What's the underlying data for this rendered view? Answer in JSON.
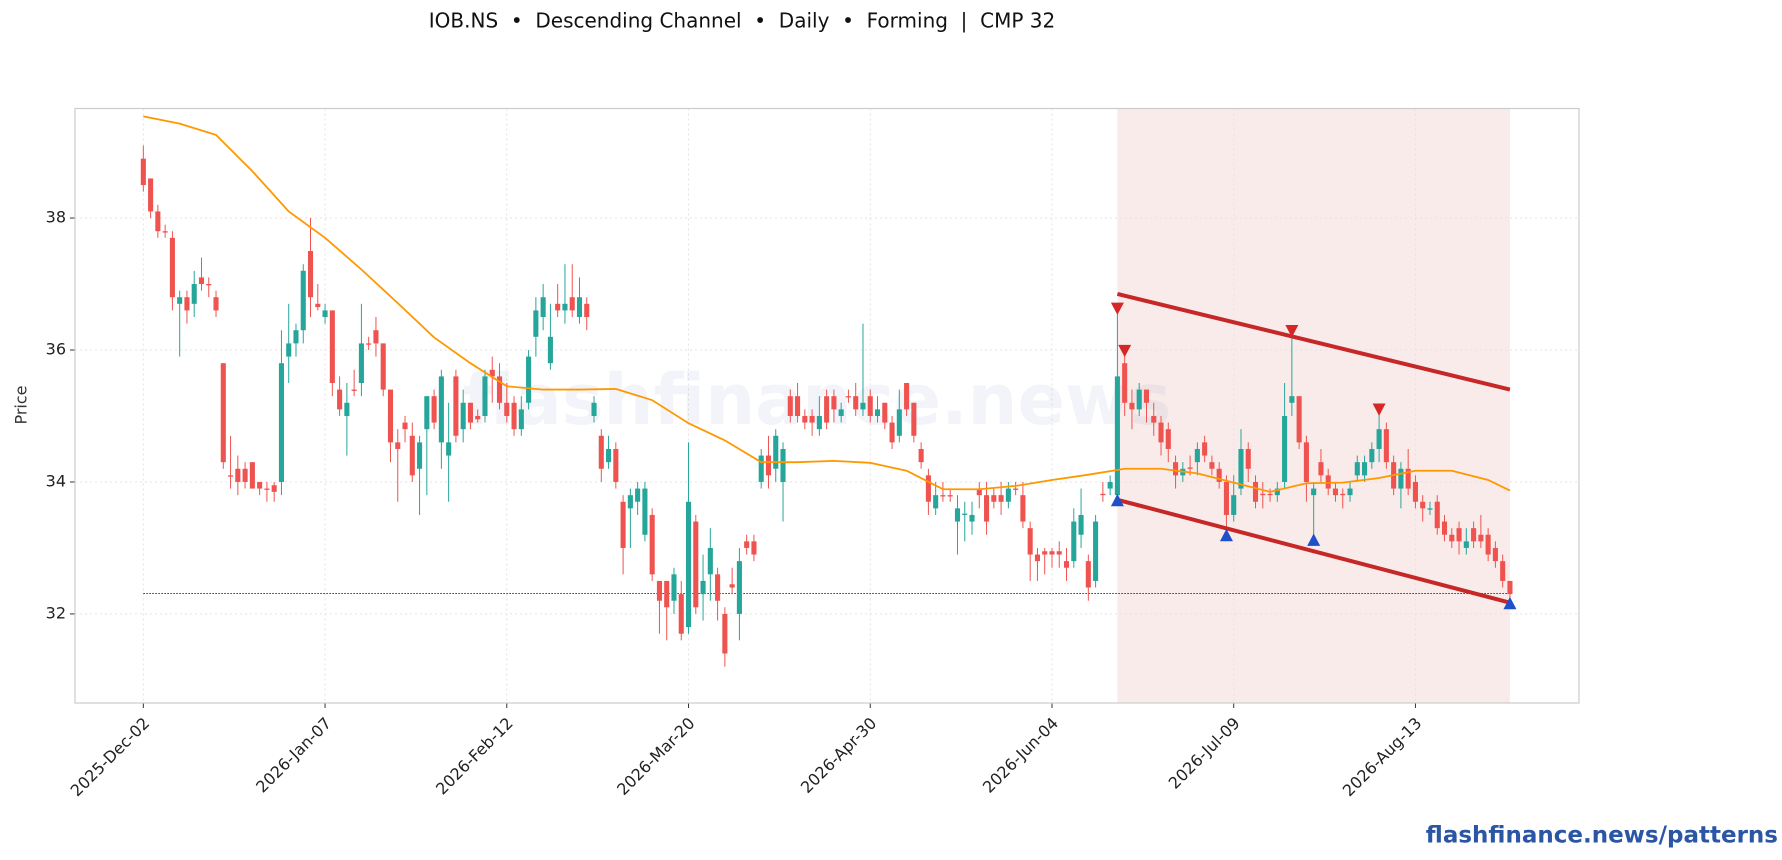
{
  "chart_data": {
    "type": "candlestick",
    "title": "IOB.NS  •  Descending Channel  •  Daily  •  Forming  |  CMP 32",
    "y_label": "Price",
    "watermark": "flashfinance.news",
    "footer": "flashfinance.news/patterns",
    "grid": true,
    "ylim": [
      30.65,
      39.66
    ],
    "yticks": [
      32,
      34,
      36,
      38
    ],
    "xlim": [
      -9.4,
      197.5
    ],
    "xticks": [
      {
        "value": 0,
        "label": "2025-Dec-02"
      },
      {
        "value": 25,
        "label": "2026-Jan-07"
      },
      {
        "value": 50,
        "label": "2026-Feb-12"
      },
      {
        "value": 75,
        "label": "2026-Mar-20"
      },
      {
        "value": 100,
        "label": "2026-Apr-30"
      },
      {
        "value": 125,
        "label": "2026-Jun-04"
      },
      {
        "value": 150,
        "label": "2026-Jul-09"
      },
      {
        "value": 175,
        "label": "2026-Aug-13"
      }
    ],
    "up_color": "#26a69a",
    "down_color": "#ef5350",
    "open": [
      38.9,
      38.6,
      38.1,
      37.8,
      37.7,
      36.7,
      36.8,
      36.7,
      37.1,
      37.0,
      36.8,
      35.8,
      34.1,
      34.2,
      34.2,
      34.3,
      34.0,
      33.9,
      33.95,
      34.0,
      35.9,
      36.1,
      36.3,
      37.5,
      36.7,
      36.5,
      36.6,
      35.4,
      35.0,
      35.4,
      35.5,
      36.1,
      36.3,
      36.1,
      35.4,
      34.6,
      34.9,
      34.7,
      34.2,
      34.8,
      35.3,
      34.6,
      34.4,
      35.6,
      34.8,
      35.2,
      35.0,
      35.0,
      35.7,
      35.6,
      35.2,
      35.2,
      34.8,
      35.2,
      36.2,
      36.5,
      35.8,
      36.7,
      36.6,
      36.8,
      36.5,
      36.7,
      35.0,
      34.7,
      34.3,
      34.5,
      33.7,
      33.6,
      33.7,
      33.2,
      33.5,
      32.5,
      32.5,
      32.2,
      32.3,
      31.8,
      33.4,
      32.3,
      32.6,
      32.6,
      32.0,
      32.45,
      32.0,
      33.1,
      33.1,
      34.0,
      34.4,
      34.2,
      34.0,
      35.3,
      35.3,
      35.0,
      35.0,
      34.8,
      35.3,
      35.3,
      35.0,
      35.3,
      35.3,
      35.1,
      35.3,
      35.0,
      35.2,
      34.9,
      34.7,
      35.5,
      35.2,
      34.5,
      34.1,
      33.6,
      33.8,
      33.8,
      33.4,
      33.5,
      33.4,
      33.9,
      33.8,
      33.8,
      33.8,
      33.7,
      33.9,
      33.8,
      33.3,
      32.9,
      32.95,
      32.95,
      32.95,
      32.8,
      32.8,
      33.2,
      32.8,
      32.5,
      33.82,
      33.9,
      33.8,
      35.8,
      35.2,
      35.1,
      35.4,
      35.0,
      34.9,
      34.8,
      34.3,
      34.1,
      34.22,
      34.3,
      34.6,
      34.3,
      34.2,
      34.0,
      33.5,
      33.9,
      34.5,
      34.0,
      33.82,
      33.82,
      33.8,
      34.0,
      35.2,
      35.3,
      34.6,
      33.8,
      34.3,
      34.1,
      33.9,
      33.82,
      33.8,
      34.1,
      34.1,
      34.3,
      34.5,
      34.8,
      34.3,
      33.9,
      34.2,
      34.0,
      33.7,
      33.58,
      33.7,
      33.4,
      33.2,
      33.3,
      33.0,
      33.3,
      33.2,
      33.2,
      33.0,
      32.8,
      32.5
    ],
    "high": [
      39.1,
      38.6,
      38.2,
      37.9,
      37.8,
      36.9,
      36.9,
      37.2,
      37.4,
      37.1,
      36.9,
      35.8,
      34.7,
      34.4,
      34.3,
      34.3,
      34.0,
      34.0,
      34.0,
      36.3,
      36.7,
      36.4,
      37.3,
      38.0,
      37.0,
      36.7,
      36.6,
      35.6,
      35.5,
      35.7,
      36.7,
      36.2,
      36.5,
      36.1,
      35.4,
      34.8,
      35.0,
      34.9,
      34.7,
      35.3,
      35.4,
      35.7,
      35.2,
      35.7,
      35.4,
      35.2,
      35.1,
      35.7,
      35.9,
      35.8,
      35.5,
      35.3,
      35.3,
      36.0,
      36.8,
      37.0,
      36.7,
      37.0,
      37.3,
      37.3,
      37.1,
      36.8,
      35.3,
      34.8,
      34.7,
      34.6,
      33.8,
      33.9,
      34.0,
      34.0,
      33.6,
      32.5,
      32.5,
      32.7,
      32.5,
      34.6,
      33.5,
      32.9,
      33.3,
      32.7,
      32.1,
      32.7,
      33.0,
      33.2,
      33.2,
      34.5,
      34.7,
      34.8,
      34.6,
      35.4,
      35.5,
      35.1,
      35.1,
      35.3,
      35.4,
      35.4,
      35.2,
      35.4,
      35.5,
      36.4,
      35.4,
      35.3,
      35.2,
      35.0,
      35.4,
      35.5,
      35.2,
      34.6,
      34.2,
      34.0,
      34.0,
      33.9,
      33.8,
      33.7,
      33.7,
      34.0,
      34.0,
      33.9,
      34.0,
      34.0,
      34.0,
      34.0,
      33.4,
      33.0,
      33.0,
      33.0,
      33.1,
      33.0,
      33.6,
      33.9,
      32.9,
      33.5,
      34.0,
      34.1,
      36.6,
      36.0,
      35.4,
      35.5,
      35.4,
      35.2,
      35.0,
      34.9,
      34.4,
      34.3,
      34.4,
      34.6,
      34.7,
      34.4,
      34.3,
      34.1,
      34.1,
      34.8,
      34.6,
      34.1,
      34.0,
      33.9,
      34.0,
      35.5,
      36.3,
      35.3,
      34.7,
      34.0,
      34.5,
      34.2,
      34.0,
      33.9,
      34.0,
      34.4,
      34.4,
      34.6,
      35.1,
      34.9,
      34.4,
      34.3,
      34.5,
      34.1,
      33.8,
      33.7,
      33.8,
      33.5,
      33.3,
      33.4,
      33.3,
      33.4,
      33.5,
      33.3,
      33.1,
      32.9,
      32.5
    ],
    "low": [
      38.4,
      38.0,
      37.7,
      37.7,
      36.6,
      35.9,
      36.4,
      36.5,
      36.9,
      36.8,
      36.5,
      34.2,
      33.9,
      33.8,
      33.9,
      33.9,
      33.8,
      33.7,
      33.7,
      33.8,
      35.5,
      35.9,
      36.1,
      36.5,
      36.6,
      36.4,
      35.3,
      35.0,
      34.4,
      35.3,
      35.3,
      36.0,
      35.9,
      35.3,
      34.3,
      33.7,
      34.6,
      34.0,
      33.5,
      33.8,
      34.8,
      34.2,
      33.7,
      34.6,
      34.6,
      34.8,
      34.9,
      34.9,
      35.2,
      35.1,
      34.9,
      34.7,
      34.7,
      35.1,
      35.9,
      36.3,
      35.7,
      36.5,
      36.4,
      36.5,
      36.4,
      36.3,
      34.9,
      34.0,
      34.2,
      33.9,
      32.6,
      33.0,
      33.5,
      33.1,
      32.5,
      31.7,
      31.6,
      32.0,
      31.6,
      31.7,
      32.0,
      31.9,
      32.2,
      31.9,
      31.2,
      32.3,
      31.6,
      32.9,
      32.8,
      33.9,
      33.9,
      34.0,
      33.4,
      34.9,
      34.9,
      34.8,
      34.7,
      34.7,
      34.8,
      34.9,
      34.9,
      35.2,
      35.0,
      35.0,
      34.9,
      34.9,
      34.8,
      34.5,
      34.6,
      35.0,
      34.6,
      34.2,
      33.5,
      33.5,
      33.7,
      33.7,
      32.9,
      33.1,
      33.2,
      33.6,
      33.2,
      33.6,
      33.5,
      33.6,
      33.8,
      33.3,
      32.5,
      32.5,
      32.6,
      32.7,
      32.7,
      32.5,
      32.7,
      33.0,
      32.2,
      32.4,
      33.7,
      33.8,
      33.7,
      35.0,
      34.8,
      35.0,
      34.9,
      34.7,
      34.4,
      34.3,
      33.9,
      34.0,
      34.1,
      34.1,
      34.3,
      34.1,
      33.9,
      33.2,
      33.4,
      33.8,
      34.0,
      33.6,
      33.6,
      33.7,
      33.7,
      33.9,
      35.0,
      34.5,
      33.7,
      33.2,
      34.0,
      33.8,
      33.7,
      33.6,
      33.7,
      34.0,
      34.0,
      34.2,
      34.3,
      34.2,
      33.8,
      33.6,
      33.8,
      33.6,
      33.4,
      33.5,
      33.2,
      33.1,
      33.0,
      32.9,
      32.9,
      33.0,
      33.0,
      32.8,
      32.7,
      32.4,
      32.2
    ],
    "close": [
      38.5,
      38.1,
      37.8,
      37.78,
      36.8,
      36.8,
      36.6,
      37.0,
      37.0,
      36.98,
      36.6,
      34.3,
      34.08,
      34.0,
      34.0,
      33.9,
      33.9,
      33.88,
      33.85,
      35.8,
      36.1,
      36.3,
      37.2,
      36.8,
      36.65,
      36.6,
      35.5,
      35.1,
      35.2,
      35.38,
      36.1,
      36.08,
      36.1,
      35.4,
      34.6,
      34.5,
      34.8,
      34.1,
      34.6,
      35.3,
      34.9,
      35.6,
      34.6,
      34.7,
      35.2,
      34.9,
      34.95,
      35.6,
      35.6,
      35.2,
      35.0,
      34.8,
      35.1,
      35.9,
      36.6,
      36.8,
      36.2,
      36.6,
      36.7,
      36.6,
      36.8,
      36.5,
      35.2,
      34.2,
      34.5,
      34.0,
      33.0,
      33.8,
      33.9,
      33.9,
      32.6,
      32.2,
      32.1,
      32.6,
      31.7,
      33.7,
      32.1,
      32.5,
      33.0,
      32.2,
      31.4,
      32.4,
      32.8,
      33.0,
      32.9,
      34.4,
      34.1,
      34.7,
      34.5,
      35.0,
      35.0,
      34.9,
      34.9,
      35.0,
      34.9,
      35.1,
      35.1,
      35.28,
      35.1,
      35.2,
      35.0,
      35.1,
      34.9,
      34.6,
      35.1,
      35.1,
      34.7,
      34.3,
      33.7,
      33.8,
      33.78,
      33.78,
      33.6,
      33.52,
      33.5,
      33.8,
      33.4,
      33.7,
      33.7,
      33.9,
      33.88,
      33.4,
      32.9,
      32.8,
      32.9,
      32.9,
      32.9,
      32.7,
      33.4,
      33.5,
      32.4,
      33.4,
      33.8,
      34.0,
      35.6,
      35.2,
      35.1,
      35.4,
      35.2,
      34.9,
      34.6,
      34.5,
      34.1,
      34.2,
      34.2,
      34.5,
      34.4,
      34.2,
      34.0,
      33.5,
      33.8,
      34.5,
      34.2,
      33.7,
      33.8,
      33.8,
      33.9,
      35.0,
      35.3,
      34.6,
      34.0,
      33.9,
      34.1,
      33.9,
      33.8,
      33.8,
      33.9,
      34.3,
      34.3,
      34.5,
      34.8,
      34.3,
      33.9,
      34.2,
      33.9,
      33.7,
      33.6,
      33.6,
      33.3,
      33.2,
      33.1,
      33.1,
      33.1,
      33.1,
      33.1,
      32.9,
      32.8,
      32.5,
      32.3
    ],
    "moving_average": {
      "color": "#ff9800",
      "x": [
        0,
        5,
        10,
        15,
        20,
        25,
        30,
        35,
        40,
        45,
        50,
        55,
        60,
        65,
        70,
        75,
        80,
        85,
        90,
        95,
        100,
        105,
        110,
        115,
        120,
        125,
        130,
        135,
        140,
        145,
        150,
        155,
        160,
        165,
        170,
        175,
        180,
        185,
        188
      ],
      "values": [
        39.54,
        39.43,
        39.26,
        38.71,
        38.1,
        37.7,
        37.22,
        36.71,
        36.19,
        35.8,
        35.45,
        35.4,
        35.4,
        35.41,
        35.24,
        34.89,
        34.63,
        34.3,
        34.3,
        34.32,
        34.29,
        34.17,
        33.89,
        33.89,
        33.94,
        34.03,
        34.11,
        34.2,
        34.2,
        34.13,
        33.99,
        33.85,
        33.98,
        33.99,
        34.06,
        34.17,
        34.17,
        34.03,
        33.87
      ]
    },
    "pattern_zone": {
      "color": "#f9ebea",
      "x": [
        134,
        188
      ]
    },
    "channel": {
      "color": "#c62828",
      "upper": {
        "x": [
          134,
          188
        ],
        "values": [
          36.85,
          35.4
        ]
      },
      "lower": {
        "x": [
          134,
          188
        ],
        "values": [
          33.73,
          32.17
        ]
      }
    },
    "pivot_highs": {
      "color": "#d62728",
      "x": [
        134,
        135,
        158,
        170
      ],
      "values": [
        36.62,
        35.98,
        36.28,
        35.09
      ]
    },
    "pivot_lows": {
      "color": "#1f4fc9",
      "x": [
        134,
        149,
        161,
        188
      ],
      "values": [
        33.73,
        33.2,
        33.13,
        32.17
      ]
    },
    "reference_line": {
      "color": "#333333",
      "value": 32.31,
      "x": [
        0,
        188
      ]
    }
  }
}
